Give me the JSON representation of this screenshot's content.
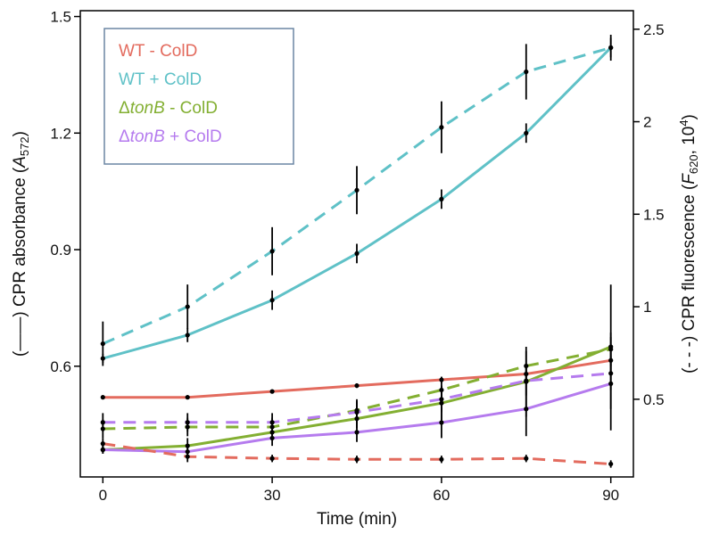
{
  "chart_data": {
    "type": "line",
    "title": "",
    "xlabel": "Time (min)",
    "ylabel_left": {
      "prefix": "(——)  CPR absorbance (",
      "symbol": "A",
      "sub": "572",
      "suffix": ")"
    },
    "ylabel_right": {
      "prefix": "(- - -) CPR fluorescence (",
      "symbol": "F",
      "sub": "620",
      "mid": ", 10",
      "sup": "4",
      "suffix": ")"
    },
    "xlim": [
      -4,
      94
    ],
    "ylim_left": [
      0.315,
      1.515
    ],
    "ylim_right": [
      0.08,
      2.6
    ],
    "x_ticks": [
      {
        "value": 0,
        "label": "0"
      },
      {
        "value": 30,
        "label": "30"
      },
      {
        "value": 60,
        "label": "60"
      },
      {
        "value": 90,
        "label": "90"
      }
    ],
    "y_left_ticks": [
      {
        "value": 0.6,
        "label": "0.6"
      },
      {
        "value": 0.9,
        "label": "0.9"
      },
      {
        "value": 1.2,
        "label": "1.2"
      },
      {
        "value": 1.5,
        "label": "1.5"
      }
    ],
    "y_right_ticks": [
      {
        "value": 0.5,
        "label": "0.5"
      },
      {
        "value": 1.0,
        "label": "1"
      },
      {
        "value": 1.5,
        "label": "1.5"
      },
      {
        "value": 2.0,
        "label": "2"
      },
      {
        "value": 2.5,
        "label": "2.5"
      }
    ],
    "x": [
      0,
      15,
      30,
      45,
      60,
      75,
      90
    ],
    "legend_position": "top-left",
    "legend": [
      {
        "prefix": "",
        "italic": "",
        "suffix": "WT - ColD",
        "color": "#E36B5E"
      },
      {
        "prefix": "",
        "italic": "",
        "suffix": "WT + ColD",
        "color": "#5FC1C7"
      },
      {
        "prefix": "Δ",
        "italic": "tonB",
        "suffix": " - ColD",
        "color": "#83AF32"
      },
      {
        "prefix": "Δ",
        "italic": "tonB",
        "suffix": " + ColD",
        "color": "#B57BEE"
      }
    ],
    "series": [
      {
        "id": "wt-minus-abs",
        "measure": "absorbance",
        "axis": "left",
        "style": "solid",
        "color": "#E36B5E",
        "values": [
          0.52,
          0.52,
          0.535,
          0.55,
          0.565,
          0.58,
          0.615
        ],
        "errors": [
          0.004,
          0.004,
          0.004,
          0.006,
          0.008,
          0.015,
          0.035
        ]
      },
      {
        "id": "wt-plus-abs",
        "measure": "absorbance",
        "axis": "left",
        "style": "solid",
        "color": "#5FC1C7",
        "values": [
          0.62,
          0.68,
          0.77,
          0.89,
          1.03,
          1.2,
          1.42
        ],
        "errors": [
          0.012,
          0.018,
          0.025,
          0.025,
          0.025,
          0.025,
          0.025
        ]
      },
      {
        "id": "tonb-minus-abs",
        "measure": "absorbance",
        "axis": "left",
        "style": "solid",
        "color": "#83AF32",
        "values": [
          0.385,
          0.395,
          0.43,
          0.465,
          0.505,
          0.56,
          0.65
        ],
        "errors": [
          0.01,
          0.02,
          0.02,
          0.025,
          0.045,
          0.09,
          0.16
        ]
      },
      {
        "id": "tonb-plus-abs",
        "measure": "absorbance",
        "axis": "left",
        "style": "solid",
        "color": "#B57BEE",
        "values": [
          0.385,
          0.38,
          0.415,
          0.43,
          0.455,
          0.49,
          0.555
        ],
        "errors": [
          0.01,
          0.015,
          0.02,
          0.025,
          0.04,
          0.07,
          0.12
        ]
      },
      {
        "id": "wt-minus-fl",
        "measure": "fluorescence",
        "axis": "right",
        "style": "dashed",
        "color": "#E36B5E",
        "values": [
          0.26,
          0.19,
          0.18,
          0.175,
          0.175,
          0.18,
          0.15
        ],
        "errors": [
          0.03,
          0.03,
          0.02,
          0.02,
          0.02,
          0.02,
          0.02
        ]
      },
      {
        "id": "wt-plus-fl",
        "measure": "fluorescence",
        "axis": "right",
        "style": "dashed",
        "color": "#5FC1C7",
        "values": [
          0.8,
          1.0,
          1.3,
          1.63,
          1.97,
          2.27,
          2.4
        ],
        "errors": [
          0.12,
          0.12,
          0.13,
          0.13,
          0.14,
          0.15,
          0.07
        ]
      },
      {
        "id": "tonb-minus-fl",
        "measure": "fluorescence",
        "axis": "right",
        "style": "dashed",
        "color": "#83AF32",
        "values": [
          0.34,
          0.35,
          0.35,
          0.44,
          0.55,
          0.68,
          0.77
        ],
        "errors": [
          0.05,
          0.05,
          0.05,
          0.06,
          0.07,
          0.08,
          0.09
        ]
      },
      {
        "id": "tonb-plus-fl",
        "measure": "fluorescence",
        "axis": "right",
        "style": "dashed",
        "color": "#B57BEE",
        "values": [
          0.375,
          0.375,
          0.375,
          0.43,
          0.5,
          0.6,
          0.64
        ],
        "errors": [
          0.05,
          0.05,
          0.05,
          0.06,
          0.07,
          0.08,
          0.09
        ]
      }
    ]
  }
}
